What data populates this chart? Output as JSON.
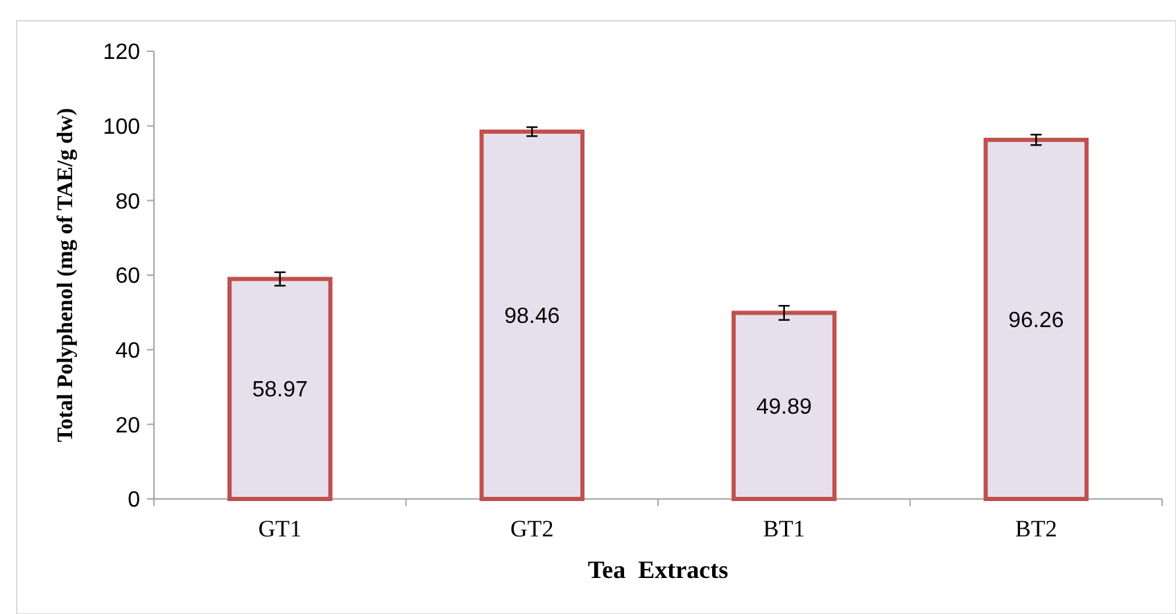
{
  "chart_data": {
    "type": "bar",
    "xlabel": "Tea  Extracts",
    "ylabel": "Total Polyphenol (mg of TAE/g dw)",
    "categories": [
      "GT1",
      "GT2",
      "BT1",
      "BT2"
    ],
    "values": [
      58.97,
      98.46,
      49.89,
      96.26
    ],
    "errors": [
      1.8,
      1.2,
      1.9,
      1.4
    ],
    "color": "#e6e0ec",
    "ylim": [
      0,
      120
    ],
    "yticks": [
      0,
      20,
      40,
      60,
      80,
      100,
      120
    ],
    "data_labels": true,
    "grid": false
  }
}
